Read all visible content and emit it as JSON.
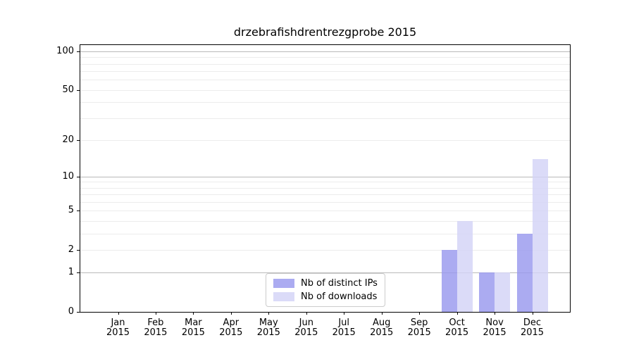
{
  "chart_data": {
    "type": "bar",
    "title": "drzebrafishdrentrezgprobe 2015",
    "categories": [
      "Jan",
      "Feb",
      "Mar",
      "Apr",
      "May",
      "Jun",
      "Jul",
      "Aug",
      "Sep",
      "Oct",
      "Nov",
      "Dec"
    ],
    "x_year": "2015",
    "series": [
      {
        "name": "Nb of distinct IPs",
        "color": "#9898ee",
        "values": [
          0,
          0,
          0,
          0,
          0,
          0,
          0,
          0,
          0,
          2,
          1,
          3
        ]
      },
      {
        "name": "Nb of downloads",
        "color": "#d3d3f6",
        "values": [
          0,
          0,
          0,
          0,
          0,
          0,
          0,
          0,
          0,
          4,
          1,
          14
        ]
      }
    ],
    "bar_alpha": 0.82,
    "yscale": "log1p",
    "ylim": [
      0,
      112
    ],
    "yticks": [
      0,
      1,
      2,
      5,
      10,
      20,
      50,
      100
    ],
    "major_grid_values": [
      1,
      10,
      100
    ],
    "minor_grid_values": [
      2,
      3,
      4,
      5,
      6,
      7,
      8,
      9,
      20,
      30,
      40,
      50,
      60,
      70,
      80,
      90
    ],
    "xlabel": "",
    "ylabel": "",
    "legend_position": "bottom-center",
    "colors": {
      "major_grid": "#b9b9b9",
      "minor_grid": "#ececec",
      "axis": "#000000",
      "text": "#000000",
      "background": "#ffffff",
      "legend_border": "#cccccc"
    }
  }
}
